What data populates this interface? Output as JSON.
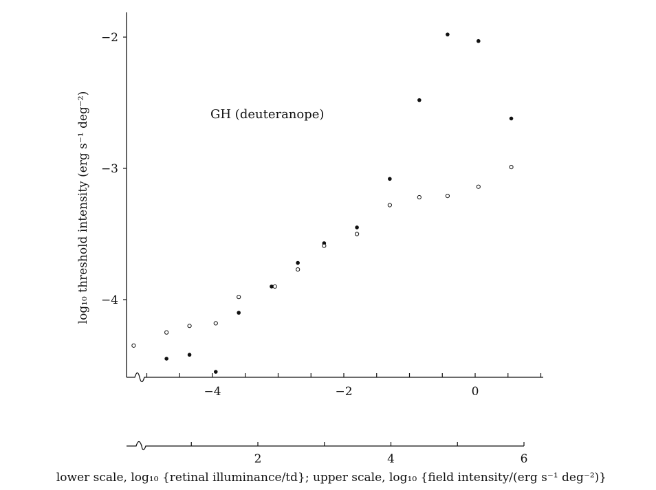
{
  "chart_data": {
    "type": "scatter",
    "title": "",
    "annotation": "GH (deuteranope)",
    "ylabel": "log₁₀ threshold intensity (erg s⁻¹ deg⁻²)",
    "xlabel": "lower scale, log₁₀ {retinal illuminance/td}; upper scale, log₁₀ {field intensity/(erg s⁻¹ deg⁻²)}",
    "xlim_upper": [
      -5.3,
      1.0
    ],
    "xlim_lower": [
      -0.5,
      6.6
    ],
    "ylim": [
      -4.6,
      -1.8
    ],
    "y_ticks": [
      -4,
      -3,
      -2
    ],
    "y_tick_labels": [
      "−4",
      "−3",
      "−2"
    ],
    "x_upper_ticks": [
      -4,
      -2,
      0
    ],
    "x_upper_tick_labels": [
      "−4",
      "−2",
      "0"
    ],
    "x_upper_minor": [
      -5,
      -4.5,
      -4,
      -3.5,
      -3,
      -2.5,
      -2,
      -1.5,
      -1,
      -0.5,
      0,
      0.5,
      1
    ],
    "x_lower_ticks": [
      2,
      4,
      6
    ],
    "x_lower_tick_labels": [
      "2",
      "4",
      "6"
    ],
    "x_lower_minor": [
      1,
      2,
      3,
      4,
      5,
      6
    ],
    "grid": false,
    "axis_color": "#111111",
    "series": [
      {
        "marker": "filled",
        "x": [
          -4.7,
          -4.35,
          -3.95,
          -3.6,
          -3.1,
          -2.7,
          -2.3,
          -1.8,
          -1.3,
          -0.85,
          -0.42,
          0.05,
          0.55
        ],
        "y": [
          -4.45,
          -4.42,
          -4.55,
          -4.1,
          -3.9,
          -3.72,
          -3.57,
          -3.45,
          -3.08,
          -2.48,
          -1.98,
          -2.03,
          -2.62
        ]
      },
      {
        "marker": "open",
        "x": [
          -5.2,
          -4.7,
          -4.35,
          -3.95,
          -3.6,
          -3.05,
          -2.7,
          -2.3,
          -1.8,
          -1.3,
          -0.85,
          -0.42,
          0.05,
          0.55
        ],
        "y": [
          -4.35,
          -4.25,
          -4.2,
          -4.18,
          -3.98,
          -3.9,
          -3.77,
          -3.59,
          -3.5,
          -3.28,
          -3.22,
          -3.21,
          -3.14,
          -2.99
        ]
      }
    ]
  }
}
